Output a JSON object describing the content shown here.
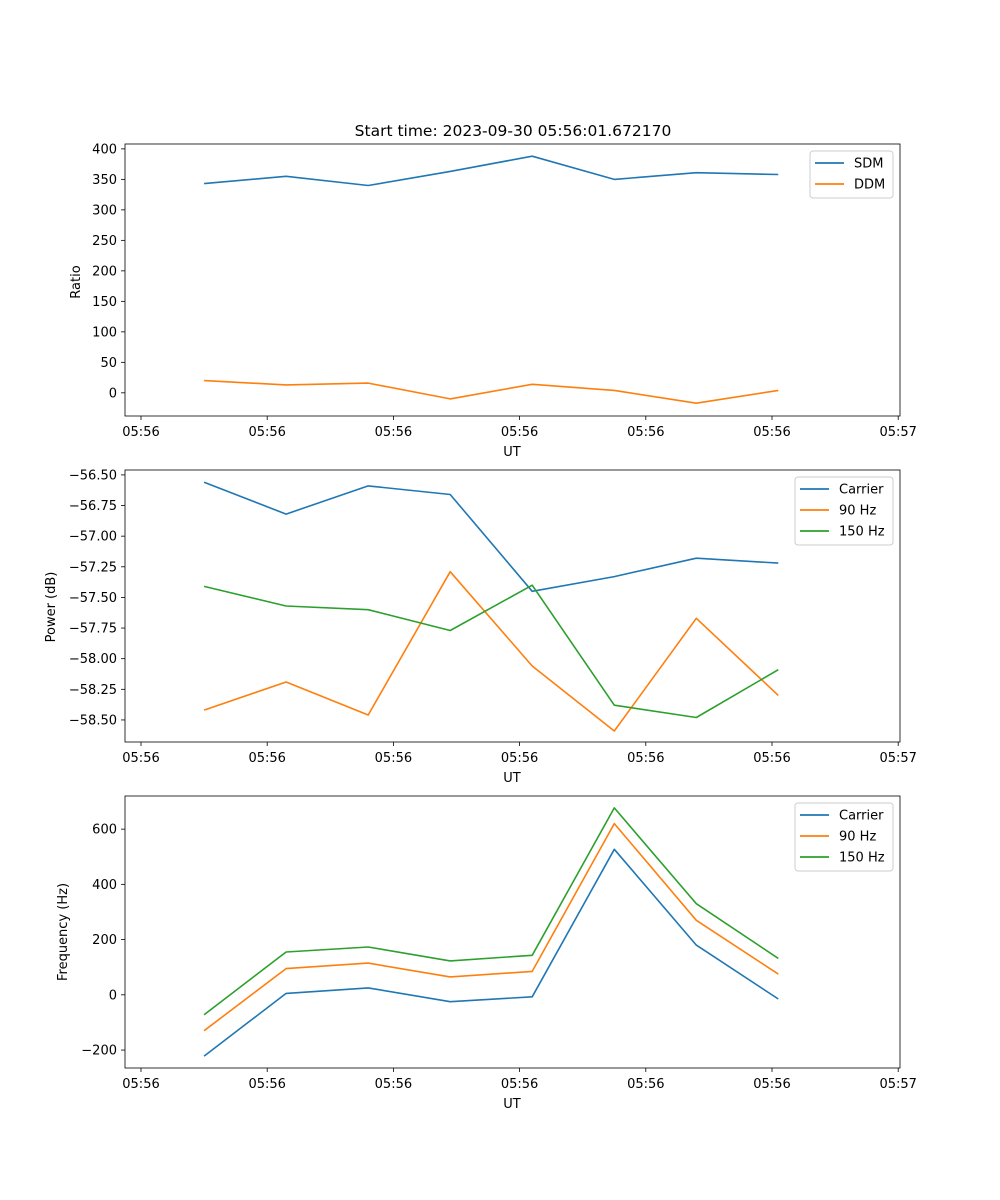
{
  "chart_data": [
    {
      "type": "line",
      "title": "Start time: 2023-09-30 05:56:01.672170",
      "xlabel": "UT",
      "ylabel": "Ratio",
      "x": [
        0.5,
        1.15,
        1.8,
        2.45,
        3.1,
        3.75,
        4.4,
        5.05
      ],
      "xlim": [
        0,
        6
      ],
      "x_ticks": [
        0,
        1,
        2,
        3,
        4,
        5,
        6
      ],
      "x_tick_labels": [
        "05:56",
        "05:56",
        "05:56",
        "05:56",
        "05:56",
        "05:56",
        "05:57"
      ],
      "ylim": [
        -38,
        408
      ],
      "y_ticks": [
        0,
        50,
        100,
        150,
        200,
        250,
        300,
        350,
        400
      ],
      "y_tick_labels": [
        "0",
        "50",
        "100",
        "150",
        "200",
        "250",
        "300",
        "350",
        "400"
      ],
      "legend": "top-right",
      "series": [
        {
          "name": "SDM",
          "color": "#1f77b4",
          "values": [
            343,
            355,
            340,
            363,
            388,
            350,
            361,
            358
          ]
        },
        {
          "name": "DDM",
          "color": "#ff7f0e",
          "values": [
            20,
            13,
            16,
            -10,
            14,
            4,
            -17,
            4
          ]
        }
      ]
    },
    {
      "type": "line",
      "title": "",
      "xlabel": "UT",
      "ylabel": "Power (dB)",
      "x": [
        0.5,
        1.15,
        1.8,
        2.45,
        3.1,
        3.75,
        4.4,
        5.05
      ],
      "xlim": [
        0,
        6
      ],
      "x_ticks": [
        0,
        1,
        2,
        3,
        4,
        5,
        6
      ],
      "x_tick_labels": [
        "05:56",
        "05:56",
        "05:56",
        "05:56",
        "05:56",
        "05:56",
        "05:57"
      ],
      "ylim": [
        -58.68,
        -56.46
      ],
      "y_ticks": [
        -58.5,
        -58.25,
        -58.0,
        -57.75,
        -57.5,
        -57.25,
        -57.0,
        -56.75,
        -56.5
      ],
      "y_tick_labels": [
        "−58.50",
        "−58.25",
        "−58.00",
        "−57.75",
        "−57.50",
        "−57.25",
        "−57.00",
        "−56.75",
        "−56.50"
      ],
      "legend": "top-right",
      "series": [
        {
          "name": "Carrier",
          "color": "#1f77b4",
          "values": [
            -56.56,
            -56.82,
            -56.59,
            -56.66,
            -57.45,
            -57.33,
            -57.18,
            -57.22
          ]
        },
        {
          "name": "90 Hz",
          "color": "#ff7f0e",
          "values": [
            -58.42,
            -58.19,
            -58.46,
            -57.29,
            -58.06,
            -58.59,
            -57.67,
            -58.3
          ]
        },
        {
          "name": "150 Hz",
          "color": "#2ca02c",
          "values": [
            -57.41,
            -57.57,
            -57.6,
            -57.77,
            -57.4,
            -58.38,
            -58.48,
            -58.09
          ]
        }
      ]
    },
    {
      "type": "line",
      "title": "",
      "xlabel": "UT",
      "ylabel": "Frequency (Hz)",
      "x": [
        0.5,
        1.15,
        1.8,
        2.45,
        3.1,
        3.75,
        4.4,
        5.05
      ],
      "xlim": [
        0,
        6
      ],
      "x_ticks": [
        0,
        1,
        2,
        3,
        4,
        5,
        6
      ],
      "x_tick_labels": [
        "05:56",
        "05:56",
        "05:56",
        "05:56",
        "05:56",
        "05:56",
        "05:57"
      ],
      "ylim": [
        -265,
        720
      ],
      "y_ticks": [
        -200,
        0,
        200,
        400,
        600
      ],
      "y_tick_labels": [
        "−200",
        "0",
        "200",
        "400",
        "600"
      ],
      "legend": "top-right",
      "series": [
        {
          "name": "Carrier",
          "color": "#1f77b4",
          "values": [
            -222,
            5,
            25,
            -25,
            -7,
            527,
            180,
            -15
          ]
        },
        {
          "name": "90 Hz",
          "color": "#ff7f0e",
          "values": [
            -130,
            95,
            115,
            65,
            85,
            620,
            270,
            75
          ]
        },
        {
          "name": "150 Hz",
          "color": "#2ca02c",
          "values": [
            -72,
            155,
            173,
            123,
            143,
            677,
            330,
            132
          ]
        }
      ]
    }
  ]
}
